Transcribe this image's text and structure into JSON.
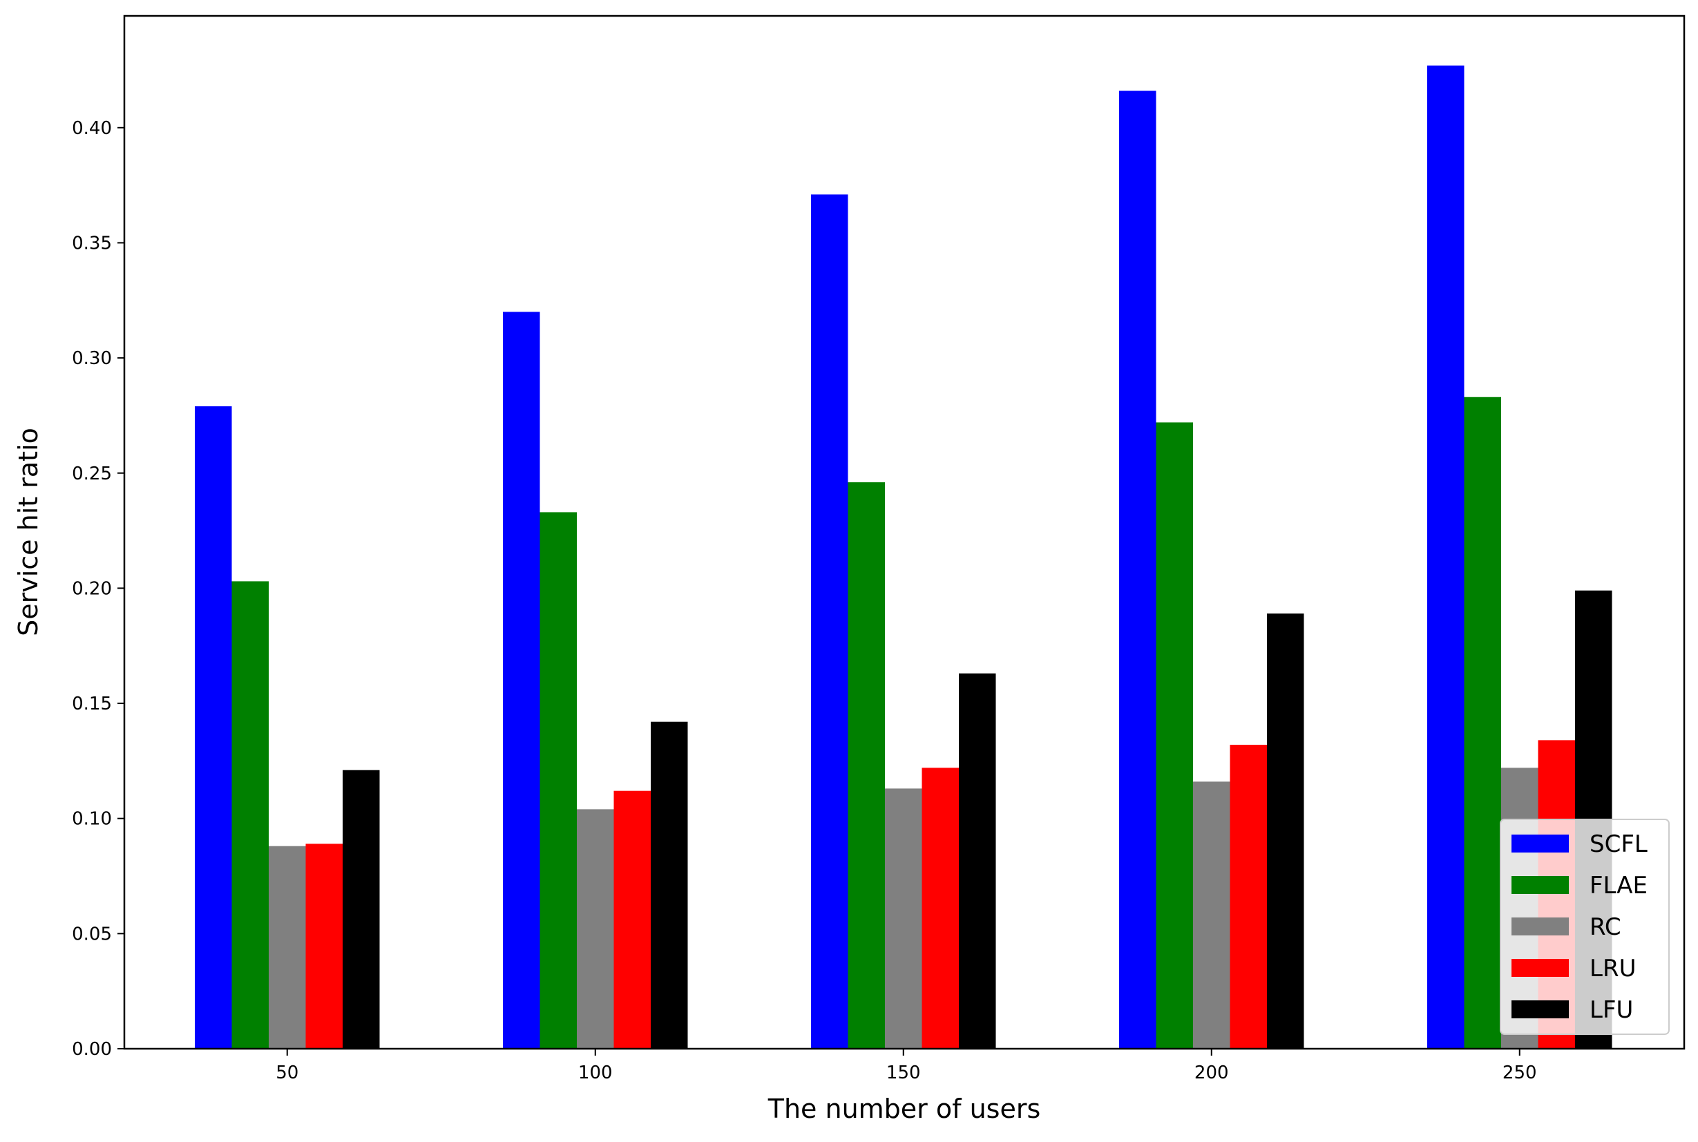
{
  "chart_data": {
    "type": "bar",
    "title": "",
    "xlabel": "The number of users",
    "ylabel": "Service hit ratio",
    "categories": [
      "50",
      "100",
      "150",
      "200",
      "250"
    ],
    "ylim": [
      0,
      0.45
    ],
    "yticks": [
      "0.00",
      "0.05",
      "0.10",
      "0.15",
      "0.20",
      "0.25",
      "0.30",
      "0.35",
      "0.40"
    ],
    "grid": false,
    "legend_position": "lower-right",
    "series": [
      {
        "name": "SCFL",
        "color": "#0000ff",
        "values": [
          0.279,
          0.32,
          0.371,
          0.416,
          0.427
        ]
      },
      {
        "name": "FLAE",
        "color": "#008000",
        "values": [
          0.203,
          0.233,
          0.246,
          0.272,
          0.283
        ]
      },
      {
        "name": "RC",
        "color": "#808080",
        "values": [
          0.088,
          0.104,
          0.113,
          0.116,
          0.122
        ]
      },
      {
        "name": "LRU",
        "color": "#ff0000",
        "values": [
          0.089,
          0.112,
          0.122,
          0.132,
          0.134
        ]
      },
      {
        "name": "LFU",
        "color": "#000000",
        "values": [
          0.121,
          0.142,
          0.163,
          0.189,
          0.199
        ]
      }
    ]
  }
}
